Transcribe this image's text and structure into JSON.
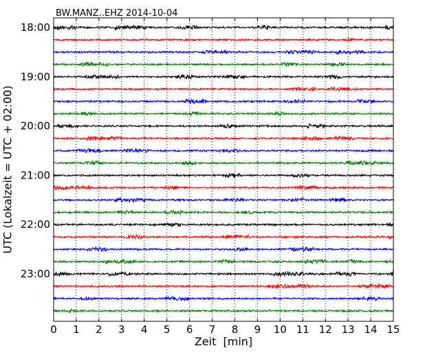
{
  "chart_data": {
    "type": "line",
    "title": "BW.MANZ..EHZ 2014-10-04",
    "xlabel": "Zeit  [min]",
    "ylabel": "UTC (Lokalzeit = UTC + 02:00)",
    "x_range": [
      0,
      15
    ],
    "x_ticks": [
      "0",
      "1",
      "2",
      "3",
      "4",
      "5",
      "6",
      "7",
      "8",
      "9",
      "10",
      "11",
      "12",
      "13",
      "14",
      "15"
    ],
    "y_tick_labels": [
      "18:00",
      "19:00",
      "20:00",
      "21:00",
      "22:00",
      "23:00"
    ],
    "grid": "vertical dotted at each minute",
    "traces_per_hour": 4,
    "trace_colors": [
      "#000000",
      "#ff0000",
      "#0000ff",
      "#008000"
    ],
    "series": [
      {
        "start": "18:00",
        "color": "#000000"
      },
      {
        "start": "18:15",
        "color": "#ff0000"
      },
      {
        "start": "18:30",
        "color": "#0000ff"
      },
      {
        "start": "18:45",
        "color": "#008000"
      },
      {
        "start": "19:00",
        "color": "#000000"
      },
      {
        "start": "19:15",
        "color": "#ff0000"
      },
      {
        "start": "19:30",
        "color": "#0000ff"
      },
      {
        "start": "19:45",
        "color": "#008000"
      },
      {
        "start": "20:00",
        "color": "#000000"
      },
      {
        "start": "20:15",
        "color": "#ff0000"
      },
      {
        "start": "20:30",
        "color": "#0000ff"
      },
      {
        "start": "20:45",
        "color": "#008000"
      },
      {
        "start": "21:00",
        "color": "#000000"
      },
      {
        "start": "21:15",
        "color": "#ff0000"
      },
      {
        "start": "21:30",
        "color": "#0000ff"
      },
      {
        "start": "21:45",
        "color": "#008000"
      },
      {
        "start": "22:00",
        "color": "#000000"
      },
      {
        "start": "22:15",
        "color": "#ff0000"
      },
      {
        "start": "22:30",
        "color": "#0000ff"
      },
      {
        "start": "22:45",
        "color": "#008000"
      },
      {
        "start": "23:00",
        "color": "#000000"
      },
      {
        "start": "23:15",
        "color": "#ff0000"
      },
      {
        "start": "23:30",
        "color": "#0000ff"
      },
      {
        "start": "23:45",
        "color": "#008000"
      }
    ]
  }
}
